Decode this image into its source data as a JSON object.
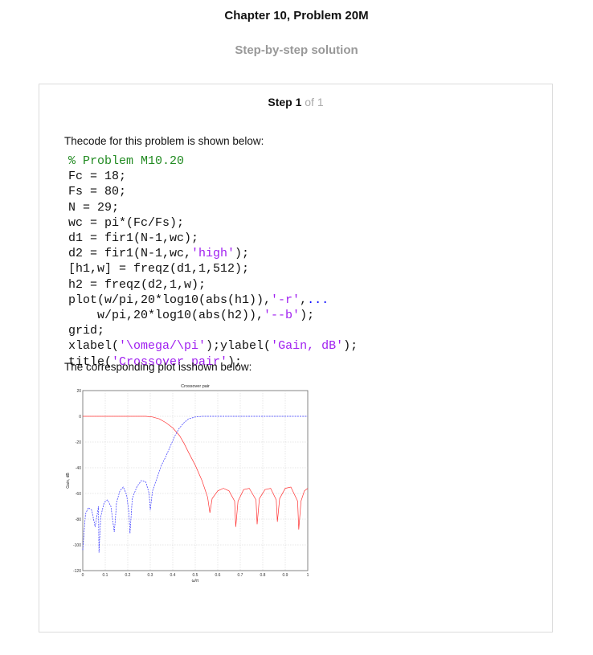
{
  "header": {
    "title": "Chapter 10, Problem 20M",
    "subtitle": "Step-by-step solution"
  },
  "step": {
    "label": "Step 1",
    "of_text": "of 1"
  },
  "body": {
    "intro": "Thecode for this problem is shown below:",
    "outro": "The corresponding plot isshown below:",
    "code_lines": [
      "% Problem M10.20",
      "Fc = 18;",
      "Fs = 80;",
      "N = 29;",
      "wc = pi*(Fc/Fs);",
      "d1 = fir1(N-1,wc);",
      "d2 = fir1(N-1,wc,'high');",
      "[h1,w] = freqz(d1,1,512);",
      "h2 = freqz(d2,1,w);",
      "plot(w/pi,20*log10(abs(h1)),'-r',...",
      "    w/pi,20*log10(abs(h2)),'--b');",
      "grid;",
      "xlabel('\\omega/\\pi');ylabel('Gain, dB');",
      "title('Crossover pair');"
    ]
  },
  "colors": {
    "comment": "#228b22",
    "string": "#a020f0",
    "continuation": "#0000ff",
    "lowpass_series": "#ff3333",
    "highpass_series": "#3333ff"
  },
  "chart_data": {
    "type": "line",
    "title": "Crossover pair",
    "xlabel": "ω/π",
    "ylabel": "Gain, dB",
    "xlim": [
      0,
      1
    ],
    "ylim": [
      -120,
      20
    ],
    "xticks": [
      0,
      0.1,
      0.2,
      0.3,
      0.4,
      0.5,
      0.6,
      0.7,
      0.8,
      0.9,
      1
    ],
    "yticks": [
      20,
      0,
      -20,
      -40,
      -60,
      -80,
      -100,
      -120
    ],
    "grid": true,
    "series": [
      {
        "style": "solid",
        "color": "#ff3333",
        "x": [
          0,
          0.1,
          0.2,
          0.28,
          0.31,
          0.34,
          0.37,
          0.4,
          0.43,
          0.45,
          0.47,
          0.5,
          0.53,
          0.555,
          0.565,
          0.575,
          0.6,
          0.625,
          0.65,
          0.675,
          0.68,
          0.69,
          0.715,
          0.74,
          0.77,
          0.775,
          0.785,
          0.81,
          0.835,
          0.86,
          0.865,
          0.875,
          0.9,
          0.925,
          0.955,
          0.96,
          0.97,
          0.985,
          1.0
        ],
        "y": [
          0,
          0,
          0,
          0,
          -0.5,
          -2,
          -5,
          -9,
          -15,
          -21,
          -28,
          -38,
          -50,
          -63,
          -75,
          -64,
          -58,
          -56,
          -58,
          -66,
          -86,
          -66,
          -57,
          -56,
          -65,
          -84,
          -64,
          -57,
          -56,
          -65,
          -82,
          -64,
          -56,
          -55,
          -66,
          -88,
          -66,
          -58,
          -56
        ]
      },
      {
        "style": "dashed",
        "color": "#3333ff",
        "x": [
          0,
          0.012,
          0.025,
          0.04,
          0.055,
          0.07,
          0.072,
          0.08,
          0.095,
          0.11,
          0.125,
          0.14,
          0.145,
          0.15,
          0.165,
          0.18,
          0.195,
          0.205,
          0.21,
          0.22,
          0.24,
          0.26,
          0.28,
          0.295,
          0.3,
          0.31,
          0.33,
          0.35,
          0.37,
          0.39,
          0.41,
          0.43,
          0.45,
          0.47,
          0.5,
          0.53,
          0.55,
          0.58,
          0.62,
          0.7,
          0.8,
          0.9,
          1.0
        ],
        "y": [
          -104,
          -76,
          -71,
          -73,
          -86,
          -70,
          -106,
          -78,
          -67,
          -65,
          -70,
          -90,
          -80,
          -67,
          -58,
          -55,
          -61,
          -75,
          -91,
          -64,
          -55,
          -50,
          -51,
          -60,
          -73,
          -58,
          -48,
          -38,
          -31,
          -23,
          -15,
          -9,
          -5,
          -2,
          -0.5,
          0,
          0,
          0,
          0,
          0,
          0,
          0,
          0
        ]
      }
    ]
  }
}
